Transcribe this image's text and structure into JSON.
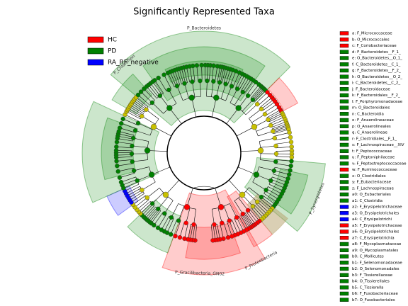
{
  "chart_data": {
    "type": "cladogram",
    "title": "Significantly Represented Taxa",
    "series": [
      {
        "name": "HC",
        "color": "#ff0000"
      },
      {
        "name": "PD",
        "color": "#008000"
      },
      {
        "name": "RA_RF_negative",
        "color": "#0000ff"
      }
    ],
    "clade_labels": [
      "P_Bacteroidetes",
      "P_Chloroflexi",
      "P_Proteobacteria",
      "P_Gracilibacteria_GN02",
      "P_Synergistetes"
    ],
    "taxa": [
      {
        "text": "a: F_Micrococcaceae",
        "class": 0
      },
      {
        "text": "b: O_Micrococcales",
        "class": 0
      },
      {
        "text": "c: F_Coriobacteriaceae",
        "class": 0
      },
      {
        "text": "d: F_Bacteroidetes__F_1_",
        "class": 1
      },
      {
        "text": "e: O_Bacteroidetes__O_1_",
        "class": 1
      },
      {
        "text": "f: C_Bacteroidetes__C_1_",
        "class": 1
      },
      {
        "text": "g: F_Bacteroidetes__F_2_",
        "class": 1
      },
      {
        "text": "h: O_Bacteroidetes__O_2_",
        "class": 1
      },
      {
        "text": "i: C_Bacteroidetes__C_2_",
        "class": 1
      },
      {
        "text": "j: F_Bacteroidaceae",
        "class": 1
      },
      {
        "text": "k: F_Bacteroidales__F_2_",
        "class": 1
      },
      {
        "text": "l: F_Porphyromonadaceae",
        "class": 1
      },
      {
        "text": "m: O_Bacteroidales",
        "class": 1
      },
      {
        "text": "n: C_Bacteroidia",
        "class": 1
      },
      {
        "text": "o: F_Anaerolineaceae",
        "class": 1
      },
      {
        "text": "p: O_Anaerolineales",
        "class": 1
      },
      {
        "text": "q: C_Anaerolineae",
        "class": 1
      },
      {
        "text": "r: F_Clostridiales__F_1_",
        "class": 1
      },
      {
        "text": "s: F_Lachnospiraceae__XIV",
        "class": 1
      },
      {
        "text": "t: F_Peptococcaceae",
        "class": 1
      },
      {
        "text": "u: F_Peptoniphilaceae",
        "class": 1
      },
      {
        "text": "v: F_Peptostreptococcaceae",
        "class": 1
      },
      {
        "text": "w: F_Ruminococcaceae",
        "class": 0
      },
      {
        "text": "x: O_Clostridiales",
        "class": 1
      },
      {
        "text": "y: F_Eubacteriaceae",
        "class": 1
      },
      {
        "text": "z: F_Lachnospiraceae",
        "class": 1
      },
      {
        "text": "a0: O_Eubacteriales",
        "class": 1
      },
      {
        "text": "a1: C_Clostridia",
        "class": 1
      },
      {
        "text": "a2: F_Erysipelotrichaceae",
        "class": 2
      },
      {
        "text": "a3: O_Erysipelotrichales",
        "class": 2
      },
      {
        "text": "a4: C_Erysipelotrichi",
        "class": 2
      },
      {
        "text": "a5: F_Erysipelotrichaceae",
        "class": 0
      },
      {
        "text": "a6: O_Erysipelotrichales",
        "class": 0
      },
      {
        "text": "a7: C_Erysipelotrichia",
        "class": 0
      },
      {
        "text": "a8: F_Mycoplasmataceae",
        "class": 1
      },
      {
        "text": "a9: O_Mycoplasmatales",
        "class": 1
      },
      {
        "text": "b0: C_Mollicutes",
        "class": 1
      },
      {
        "text": "b1: F_Selenomonadaceae",
        "class": 1
      },
      {
        "text": "b2: O_Selenomonadales",
        "class": 1
      },
      {
        "text": "b3: F_Tissierellaceae",
        "class": 1
      },
      {
        "text": "b4: O_Tissierellales",
        "class": 1
      },
      {
        "text": "b5: C_Tissierella",
        "class": 1
      },
      {
        "text": "b6: F_Fusobacteriaceae",
        "class": 1
      },
      {
        "text": "b7: O_Fusobacteriales",
        "class": 1
      }
    ]
  }
}
